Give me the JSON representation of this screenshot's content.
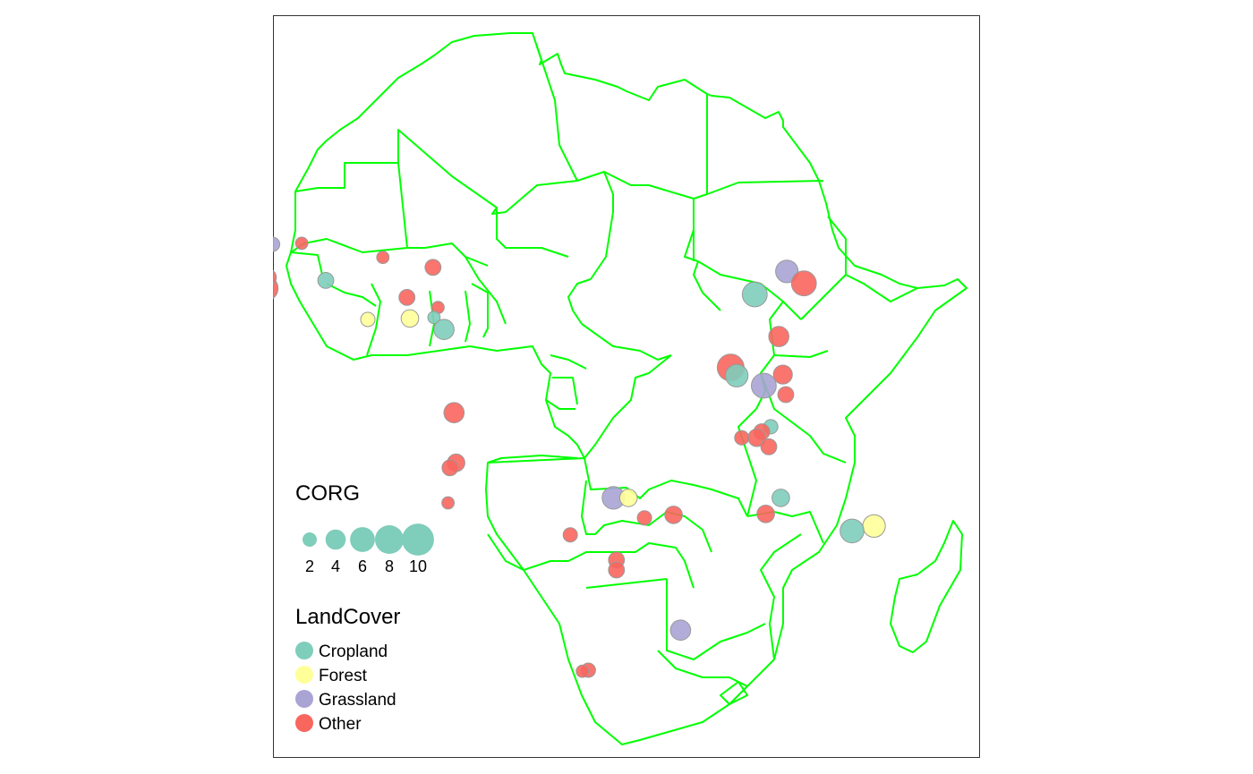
{
  "map": {
    "border_color": "#00ff00",
    "frame_color": "#333333",
    "background": "#ffffff"
  },
  "legend": {
    "size_title": "CORG",
    "size_breaks": [
      {
        "value": 2,
        "label": "2"
      },
      {
        "value": 4,
        "label": "4"
      },
      {
        "value": 6,
        "label": "6"
      },
      {
        "value": 8,
        "label": "8"
      },
      {
        "value": 10,
        "label": "10"
      }
    ],
    "size_color": "#7fcdbb",
    "color_title": "LandCover",
    "classes": [
      {
        "name": "Cropland",
        "color": "#7fcdbb"
      },
      {
        "name": "Forest",
        "color": "#ffff99"
      },
      {
        "name": "Grassland",
        "color": "#a9a4d4"
      },
      {
        "name": "Other",
        "color": "#f8665e"
      }
    ]
  },
  "points": [
    {
      "lon": -12.5,
      "lat": 13.3,
      "corg": 2,
      "class": "Grassland"
    },
    {
      "lon": -9.6,
      "lat": 13.4,
      "corg": 1.5,
      "class": "Other"
    },
    {
      "lon": -13.2,
      "lat": 8.9,
      "corg": 6,
      "class": "Other"
    },
    {
      "lon": -13.0,
      "lat": 10.0,
      "corg": 3,
      "class": "Other"
    },
    {
      "lon": -7.2,
      "lat": 9.7,
      "corg": 2.5,
      "class": "Cropland"
    },
    {
      "lon": -1.5,
      "lat": 12.0,
      "corg": 1.5,
      "class": "Other"
    },
    {
      "lon": 3.5,
      "lat": 11.0,
      "corg": 2.5,
      "class": "Other"
    },
    {
      "lon": 0.9,
      "lat": 8.0,
      "corg": 2.5,
      "class": "Other"
    },
    {
      "lon": -3.0,
      "lat": 5.8,
      "corg": 2,
      "class": "Forest"
    },
    {
      "lon": 1.2,
      "lat": 5.9,
      "corg": 3,
      "class": "Forest"
    },
    {
      "lon": 4.0,
      "lat": 7.0,
      "corg": 1.5,
      "class": "Other"
    },
    {
      "lon": 3.6,
      "lat": 6.0,
      "corg": 1.5,
      "class": "Cropland"
    },
    {
      "lon": 4.6,
      "lat": 4.8,
      "corg": 4,
      "class": "Cropland"
    },
    {
      "lon": 5.6,
      "lat": -3.5,
      "corg": 4,
      "class": "Other"
    },
    {
      "lon": 5.8,
      "lat": -8.5,
      "corg": 3,
      "class": "Other"
    },
    {
      "lon": 5.2,
      "lat": -9.0,
      "corg": 2.5,
      "class": "Other"
    },
    {
      "lon": 5.0,
      "lat": -12.5,
      "corg": 1.5,
      "class": "Other"
    },
    {
      "lon": 21.5,
      "lat": -12.0,
      "corg": 5,
      "class": "Grassland"
    },
    {
      "lon": 23.0,
      "lat": -12.0,
      "corg": 3,
      "class": "Forest"
    },
    {
      "lon": 24.6,
      "lat": -14.0,
      "corg": 2,
      "class": "Other"
    },
    {
      "lon": 27.5,
      "lat": -13.7,
      "corg": 3,
      "class": "Other"
    },
    {
      "lon": 17.2,
      "lat": -15.7,
      "corg": 2,
      "class": "Other"
    },
    {
      "lon": 21.8,
      "lat": -18.2,
      "corg": 2.5,
      "class": "Other"
    },
    {
      "lon": 21.8,
      "lat": -19.2,
      "corg": 2.5,
      "class": "Other"
    },
    {
      "lon": 28.2,
      "lat": -25.2,
      "corg": 4,
      "class": "Grassland"
    },
    {
      "lon": 19.0,
      "lat": -29.2,
      "corg": 2,
      "class": "Other"
    },
    {
      "lon": 18.4,
      "lat": -29.3,
      "corg": 1.5,
      "class": "Other"
    },
    {
      "lon": 38.8,
      "lat": 10.6,
      "corg": 5,
      "class": "Grassland"
    },
    {
      "lon": 35.6,
      "lat": 8.3,
      "corg": 6,
      "class": "Cropland"
    },
    {
      "lon": 40.5,
      "lat": 9.4,
      "corg": 6,
      "class": "Other"
    },
    {
      "lon": 38.0,
      "lat": 4.1,
      "corg": 4,
      "class": "Other"
    },
    {
      "lon": 38.4,
      "lat": 0.3,
      "corg": 3.5,
      "class": "Other"
    },
    {
      "lon": 38.7,
      "lat": -1.7,
      "corg": 2.5,
      "class": "Other"
    },
    {
      "lon": 33.2,
      "lat": 1.0,
      "corg": 7,
      "class": "Other"
    },
    {
      "lon": 33.8,
      "lat": 0.2,
      "corg": 5,
      "class": "Cropland"
    },
    {
      "lon": 36.5,
      "lat": -0.8,
      "corg": 6,
      "class": "Grassland"
    },
    {
      "lon": 37.2,
      "lat": -4.9,
      "corg": 2,
      "class": "Cropland"
    },
    {
      "lon": 36.3,
      "lat": -5.4,
      "corg": 2.5,
      "class": "Other"
    },
    {
      "lon": 35.8,
      "lat": -6.0,
      "corg": 3,
      "class": "Other"
    },
    {
      "lon": 34.3,
      "lat": -6.0,
      "corg": 2,
      "class": "Other"
    },
    {
      "lon": 37.0,
      "lat": -6.9,
      "corg": 2.5,
      "class": "Other"
    },
    {
      "lon": 38.2,
      "lat": -12.0,
      "corg": 3,
      "class": "Cropland"
    },
    {
      "lon": 36.7,
      "lat": -13.6,
      "corg": 3,
      "class": "Other"
    },
    {
      "lon": 47.5,
      "lat": -14.8,
      "corg": 5,
      "class": "Forest"
    },
    {
      "lon": 45.3,
      "lat": -15.3,
      "corg": 5.5,
      "class": "Cropland"
    }
  ]
}
